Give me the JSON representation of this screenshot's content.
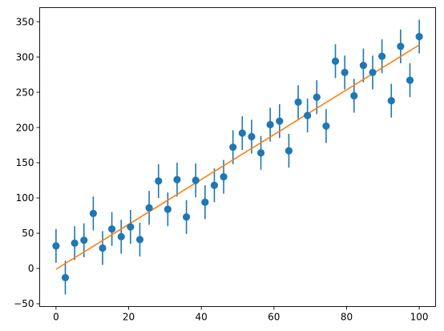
{
  "chart_data": {
    "type": "scatter",
    "title": "",
    "xlabel": "",
    "ylabel": "",
    "xlim": [
      -4.5,
      104.5
    ],
    "ylim": [
      -54,
      370
    ],
    "xticks": [
      0,
      20,
      40,
      60,
      80,
      100
    ],
    "yticks": [
      -50,
      0,
      50,
      100,
      150,
      200,
      250,
      300,
      350
    ],
    "grid": false,
    "legend": "none",
    "colors": {
      "points": "#1f77b4",
      "fit_line": "#ff7f0e"
    },
    "series": [
      {
        "kind": "points-with-error-bars",
        "error": 24,
        "x": [
          0,
          2.56,
          5.13,
          7.69,
          10.26,
          12.82,
          15.38,
          17.95,
          20.51,
          23.08,
          25.64,
          28.21,
          30.77,
          33.33,
          35.9,
          38.46,
          41.03,
          43.59,
          46.15,
          48.72,
          51.28,
          53.85,
          56.41,
          58.97,
          61.54,
          64.1,
          66.67,
          69.23,
          71.79,
          74.36,
          76.92,
          79.49,
          82.05,
          84.62,
          87.18,
          89.74,
          92.31,
          94.87,
          97.44,
          100
        ],
        "y": [
          32,
          -13,
          36,
          40,
          78,
          29,
          56,
          45,
          59,
          41,
          86,
          124,
          84,
          126,
          73,
          125,
          94,
          118,
          130,
          172,
          192,
          187,
          164,
          204,
          209,
          167,
          236,
          217,
          243,
          202,
          294,
          278,
          245,
          288,
          278,
          301,
          238,
          315,
          267,
          329
        ]
      },
      {
        "kind": "fit-line",
        "x": [
          0,
          100
        ],
        "y": [
          -1,
          317
        ]
      }
    ]
  }
}
